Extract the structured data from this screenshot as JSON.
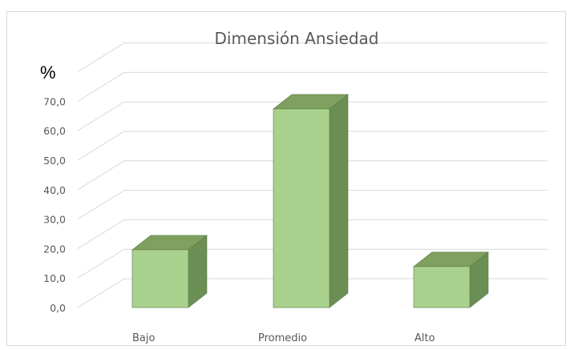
{
  "chart_data": {
    "type": "bar",
    "title": "Dimensión Ansiedad",
    "unit_label": "%",
    "categories": [
      "Bajo",
      "Promedio",
      "Alto"
    ],
    "values": [
      19.6,
      67.4,
      13.9
    ],
    "ylim": [
      0,
      80
    ],
    "yticks": [
      "0,0",
      "10,0",
      "20,0",
      "30,0",
      "40,0",
      "50,0",
      "60,0",
      "70,0"
    ],
    "tick_values": [
      0,
      10,
      20,
      30,
      40,
      50,
      60,
      70
    ],
    "grid": true,
    "legend": "none",
    "colors": {
      "front": "#a9d18e",
      "side": "#6b8e55",
      "top": "#7fa05f",
      "edge": "#5a7a44"
    }
  }
}
